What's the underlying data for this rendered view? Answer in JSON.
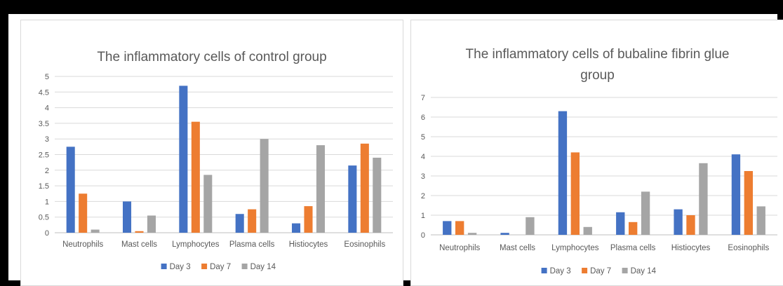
{
  "colors": {
    "Day 3": "#4472c4",
    "Day 7": "#ed7d31",
    "Day 14": "#a5a5a5"
  },
  "chart_data": [
    {
      "type": "bar",
      "title": "The inflammatory cells of control group",
      "title_lines": [
        "The inflammatory cells of control group"
      ],
      "categories": [
        "Neutrophils",
        "Mast cells",
        "Lymphocytes",
        "Plasma cells",
        "Histiocytes",
        "Eosinophils"
      ],
      "series": [
        {
          "name": "Day 3",
          "values": [
            2.75,
            1.0,
            4.7,
            0.6,
            0.3,
            2.15
          ]
        },
        {
          "name": "Day 7",
          "values": [
            1.25,
            0.05,
            3.55,
            0.75,
            0.85,
            2.85
          ]
        },
        {
          "name": "Day 14",
          "values": [
            0.1,
            0.55,
            1.85,
            3.0,
            2.8,
            2.4
          ]
        }
      ],
      "yticks": [
        "0",
        "0.5",
        "1",
        "1.5",
        "2",
        "2.5",
        "3",
        "3.5",
        "4",
        "4.5",
        "5"
      ],
      "ylim": [
        0,
        5
      ],
      "grid": true,
      "legend_position": "bottom"
    },
    {
      "type": "bar",
      "title": "The inflammatory cells of bubaline fibrin glue group",
      "title_lines": [
        "The inflammatory cells of bubaline fibrin glue",
        "group"
      ],
      "categories": [
        "Neutrophils",
        "Mast cells",
        "Lymphocytes",
        "Plasma cells",
        "Histiocytes",
        "Eosinophils"
      ],
      "series": [
        {
          "name": "Day 3",
          "values": [
            0.7,
            0.1,
            6.3,
            1.15,
            1.3,
            4.1
          ]
        },
        {
          "name": "Day 7",
          "values": [
            0.7,
            0.0,
            4.2,
            0.65,
            1.0,
            3.25
          ]
        },
        {
          "name": "Day 14",
          "values": [
            0.1,
            0.9,
            0.4,
            2.2,
            3.65,
            1.45
          ]
        }
      ],
      "yticks": [
        "0",
        "1",
        "2",
        "3",
        "4",
        "5",
        "6",
        "7"
      ],
      "ylim": [
        0,
        7
      ],
      "grid": true,
      "legend_position": "bottom"
    }
  ]
}
